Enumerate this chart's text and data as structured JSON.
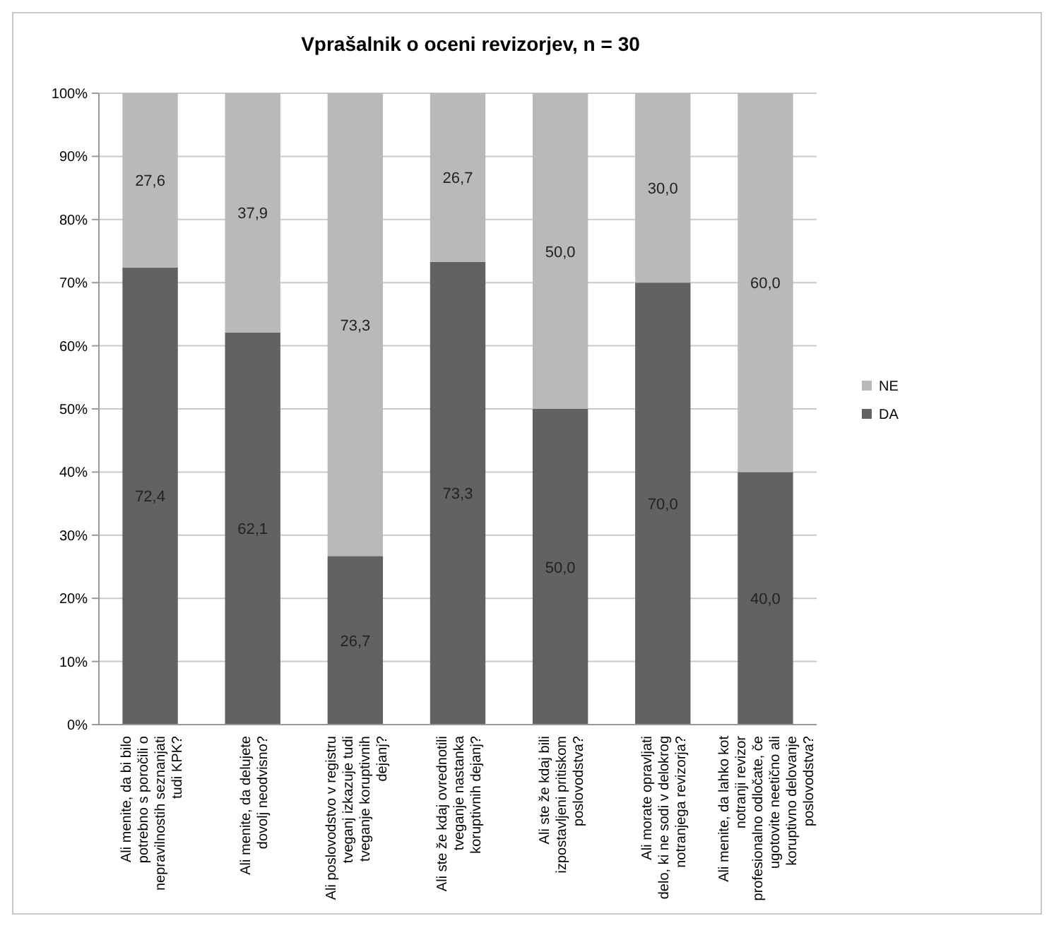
{
  "chart_data": {
    "type": "bar",
    "title": "Vprašalnik o oceni revizorjev, n = 30",
    "stacked": true,
    "grid": "y",
    "legend": "right",
    "categories": [
      "Ali menite, da bi bilo\npotrebno s poročili o\nnepravilnostih seznanjati\ntudi KPK?",
      "Ali menite, da delujete\ndovolj neodvisno?",
      "Ali poslovodstvo v registru\ntveganj izkazuje tudi\ntveganje koruptivnih\ndejanj?",
      "Ali ste že kdaj ovrednotili\ntveganje nastanka\nkoruptivnih dejanj?",
      "Ali ste že kdaj bili\nizpostavljeni pritiskom\nposlovodstva?",
      "Ali morate opravljati\ndelo, ki ne sodi v delokrog\nnotranjega revizorja?",
      "Ali menite, da lahko kot\nnotranji revizor\nprofesionalno odločate, če\nugotovite neetično ali\nkoruptivno delovanje\nposlovodstva?"
    ],
    "series": [
      {
        "name": "DA",
        "color": "#626262",
        "values": [
          72.4,
          62.1,
          26.7,
          73.3,
          50,
          70,
          40
        ],
        "value_labels": [
          "72,4",
          "62,1",
          "26,7",
          "73,3",
          "50,0",
          "70,0",
          "40,0"
        ]
      },
      {
        "name": "NE",
        "color": "#b9b9b9",
        "values": [
          27.6,
          37.9,
          73.3,
          26.7,
          50,
          30,
          60
        ],
        "value_labels": [
          "27,6",
          "37,9",
          "73,3",
          "26,7",
          "50,0",
          "30,0",
          "60,0"
        ]
      }
    ],
    "ylim": [
      0,
      100
    ],
    "yticks": [
      {
        "value": 0,
        "label": "0%"
      },
      {
        "value": 10,
        "label": "10%"
      },
      {
        "value": 20,
        "label": "20%"
      },
      {
        "value": 30,
        "label": "30%"
      },
      {
        "value": 40,
        "label": "40%"
      },
      {
        "value": 50,
        "label": "50%"
      },
      {
        "value": 60,
        "label": "60%"
      },
      {
        "value": 70,
        "label": "70%"
      },
      {
        "value": 80,
        "label": "80%"
      },
      {
        "value": 90,
        "label": "90%"
      },
      {
        "value": 100,
        "label": "100%"
      }
    ]
  }
}
